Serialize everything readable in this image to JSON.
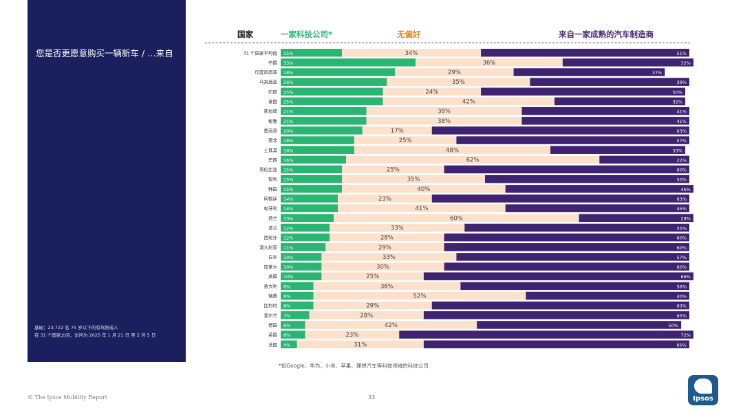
{
  "panel": {
    "question": "您是否更愿意购买一辆新车 / …来自",
    "base_note_1": "基础：23,722 名 75 岁以下的有驾照成人",
    "base_note_2": "在 31 个国家之间，访问为 2025 年 1 月 21 日 至 2 月 5 日"
  },
  "legend": {
    "country": "国家",
    "tech": "一家科技公司*",
    "none": "无偏好",
    "auto": "来自一家成熟的汽车制造商"
  },
  "colors": {
    "tech": "#2bb573",
    "none": "#fbe0cb",
    "auto": "#3f2370",
    "panel": "#1a1f5e"
  },
  "chart_data": {
    "type": "bar",
    "stacked": true,
    "orientation": "horizontal",
    "unit": "%",
    "categories": [
      "31 个国家平均值",
      "中国",
      "印度尼西亚",
      "马来西亚",
      "印度",
      "泰国",
      "新加坡",
      "秘鲁",
      "墨西哥",
      "南非",
      "土耳其",
      "巴西",
      "哥伦比亚",
      "智利",
      "韩国",
      "阿根廷",
      "匈牙利",
      "荷兰",
      "波兰",
      "西班牙",
      "澳大利亚",
      "日本",
      "加拿大",
      "美国",
      "意大利",
      "瑞典",
      "比利时",
      "爱尔兰",
      "德国",
      "英国",
      "法国"
    ],
    "series": [
      {
        "name": "一家科技公司*",
        "values": [
          15,
          33,
          28,
          26,
          25,
          25,
          21,
          21,
          20,
          18,
          18,
          16,
          15,
          15,
          15,
          14,
          14,
          13,
          12,
          12,
          11,
          10,
          10,
          10,
          8,
          8,
          8,
          7,
          6,
          6,
          4
        ]
      },
      {
        "name": "无偏好",
        "values": [
          34,
          36,
          29,
          35,
          24,
          42,
          38,
          38,
          17,
          25,
          48,
          62,
          25,
          35,
          40,
          23,
          41,
          60,
          33,
          28,
          29,
          33,
          30,
          25,
          36,
          52,
          29,
          28,
          42,
          23,
          31
        ]
      },
      {
        "name": "来自一家成熟的汽车制造商",
        "values": [
          51,
          32,
          37,
          39,
          50,
          32,
          41,
          41,
          63,
          57,
          33,
          22,
          60,
          50,
          46,
          63,
          45,
          28,
          55,
          60,
          60,
          57,
          60,
          66,
          56,
          40,
          63,
          65,
          50,
          72,
          65
        ]
      }
    ],
    "xlim": [
      0,
      100
    ]
  },
  "footnote": "*如Google、华为、小米、苹果、理想汽车等科技领域的科技公司",
  "footer": {
    "source": "© The Ipsos Mobility Report",
    "page": "33",
    "logo": "Ipsos"
  }
}
